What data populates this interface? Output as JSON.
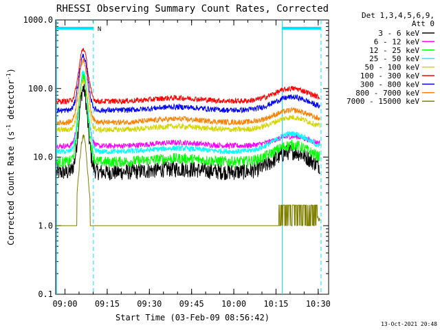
{
  "chart_data": {
    "type": "line",
    "title": "RHESSI Observing Summary Count Rates, Corrected",
    "xlabel": "Start Time (03-Feb-09 08:56:42)",
    "ylabel_main": "Corrected Count Rate (s",
    "ylabel_sup1": "-1",
    "ylabel_mid": " detector",
    "ylabel_sup2": "-1",
    "ylabel_end": ")",
    "y_scale": "log",
    "ylim": [
      0.1,
      1000
    ],
    "x_start_label": "08:56:42",
    "x_end_label": "10:34",
    "x_ticks": [
      "09:00",
      "09:15",
      "09:30",
      "09:45",
      "10:00",
      "10:15",
      "10:30"
    ],
    "y_ticks": [
      "0.1",
      "1.0",
      "10.0",
      "100.0",
      "1000.0"
    ],
    "legend_header": [
      "Det 1,3,4,5,6,9,",
      "Att 0"
    ],
    "legend_position": "right",
    "flag_label": "N",
    "timestamp": "13-Oct-2021 20:48",
    "series": [
      {
        "name": "3 - 6 keV",
        "color": "#000000",
        "base": 6.0,
        "peak": 100,
        "hump": 12
      },
      {
        "name": "6 - 12 keV",
        "color": "#ff00ff",
        "base": 14.5,
        "peak": 140,
        "hump": 20
      },
      {
        "name": "12 - 25 keV",
        "color": "#00ff00",
        "base": 8.5,
        "peak": 160,
        "hump": 15
      },
      {
        "name": "25 - 50 keV",
        "color": "#00ffff",
        "base": 12.0,
        "peak": 175,
        "hump": 22
      },
      {
        "name": "50 - 100 keV",
        "color": "#d4d400",
        "base": 25.0,
        "peak": 130,
        "hump": 38
      },
      {
        "name": "100 - 300 keV",
        "color": "#ff0000",
        "base": 65.0,
        "peak": 380,
        "hump": 100
      },
      {
        "name": "300 - 800 keV",
        "color": "#0000ff",
        "base": 48.0,
        "peak": 300,
        "hump": 75
      },
      {
        "name": "800 - 7000 keV",
        "color": "#ff8000",
        "base": 32.0,
        "peak": 260,
        "hump": 48
      },
      {
        "name": "7000 - 15000 keV",
        "color": "#808000",
        "base": 1.0,
        "peak": 20,
        "hump": 2.0
      }
    ]
  }
}
